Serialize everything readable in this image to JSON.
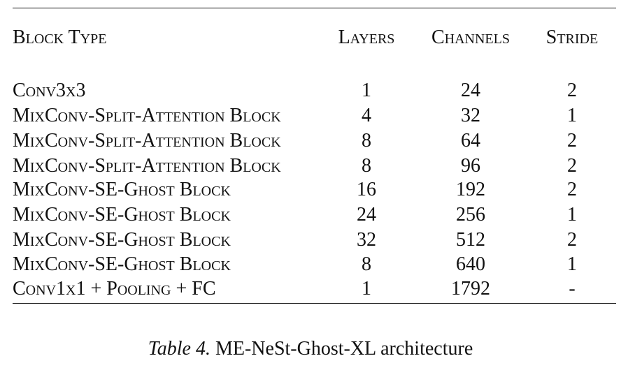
{
  "table": {
    "headers": {
      "block_type": "Block Type",
      "layers": "Layers",
      "channels": "Channels",
      "stride": "Stride"
    },
    "rows": [
      {
        "block_type": "Conv3x3",
        "layers": "1",
        "channels": "24",
        "stride": "2"
      },
      {
        "block_type": "MixConv-Split-Attention Block",
        "layers": "4",
        "channels": "32",
        "stride": "1"
      },
      {
        "block_type": "MixConv-Split-Attention Block",
        "layers": "8",
        "channels": "64",
        "stride": "2"
      },
      {
        "block_type": "MixConv-Split-Attention Block",
        "layers": "8",
        "channels": "96",
        "stride": "2"
      },
      {
        "block_type": "MixConv-SE-Ghost Block",
        "layers": "16",
        "channels": "192",
        "stride": "2"
      },
      {
        "block_type": "MixConv-SE-Ghost Block",
        "layers": "24",
        "channels": "256",
        "stride": "1"
      },
      {
        "block_type": "MixConv-SE-Ghost Block",
        "layers": "32",
        "channels": "512",
        "stride": "2"
      },
      {
        "block_type": "MixConv-SE-Ghost Block",
        "layers": "8",
        "channels": "640",
        "stride": "1"
      },
      {
        "block_type": "Conv1x1 + Pooling + FC",
        "layers": "1",
        "channels": "1792",
        "stride": "-"
      }
    ]
  },
  "caption": {
    "label": "Table 4.",
    "text": "ME-NeSt-Ghost-XL architecture"
  }
}
